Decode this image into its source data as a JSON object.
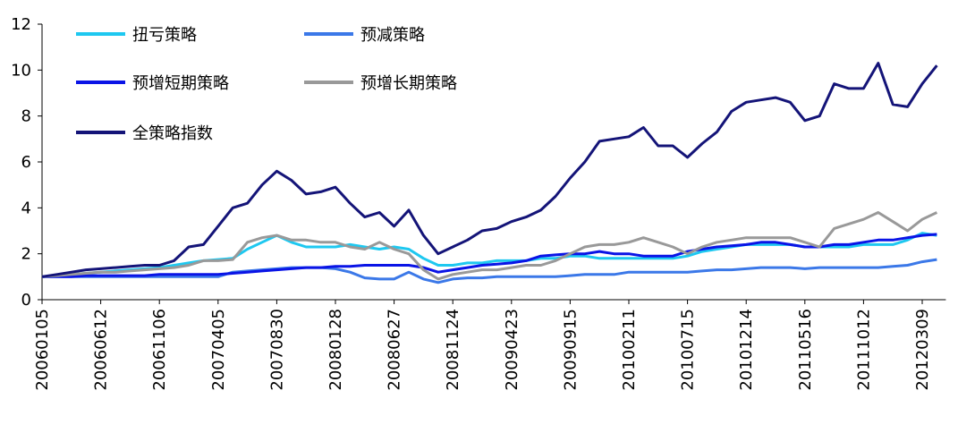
{
  "chart_data": {
    "type": "line",
    "categories": [
      "20060105",
      null,
      null,
      null,
      "20060612",
      null,
      null,
      null,
      "20061106",
      null,
      null,
      null,
      "20070405",
      null,
      null,
      null,
      "20070830",
      null,
      null,
      null,
      "20080128",
      null,
      null,
      null,
      "20080627",
      null,
      null,
      null,
      "20081124",
      null,
      null,
      null,
      "20090423",
      null,
      null,
      null,
      "20090915",
      null,
      null,
      null,
      "20100211",
      null,
      null,
      null,
      "20100715",
      null,
      null,
      null,
      "20101214",
      null,
      null,
      null,
      "20110516",
      null,
      null,
      null,
      "20111012",
      null,
      null,
      null,
      "20120309",
      null
    ],
    "series": [
      {
        "name": "扭亏策略",
        "color": "#1ec8f0",
        "values": [
          1.0,
          1.05,
          1.1,
          1.15,
          1.2,
          1.25,
          1.3,
          1.35,
          1.4,
          1.5,
          1.6,
          1.7,
          1.75,
          1.8,
          2.2,
          2.5,
          2.8,
          2.5,
          2.3,
          2.3,
          2.3,
          2.4,
          2.3,
          2.2,
          2.3,
          2.2,
          1.8,
          1.5,
          1.5,
          1.6,
          1.6,
          1.7,
          1.7,
          1.7,
          1.8,
          1.8,
          1.9,
          1.9,
          1.8,
          1.8,
          1.8,
          1.8,
          1.8,
          1.8,
          1.9,
          2.1,
          2.2,
          2.3,
          2.4,
          2.4,
          2.4,
          2.4,
          2.3,
          2.3,
          2.3,
          2.3,
          2.4,
          2.4,
          2.4,
          2.6,
          2.9,
          2.8
        ]
      },
      {
        "name": "预减策略",
        "color": "#3b78e8",
        "values": [
          1.0,
          1.0,
          1.0,
          1.0,
          1.0,
          1.0,
          1.0,
          1.0,
          1.0,
          1.0,
          1.0,
          1.0,
          1.0,
          1.2,
          1.25,
          1.3,
          1.35,
          1.4,
          1.4,
          1.4,
          1.35,
          1.2,
          0.95,
          0.9,
          0.9,
          1.2,
          0.9,
          0.75,
          0.9,
          0.95,
          0.95,
          1.0,
          1.0,
          1.0,
          1.0,
          1.0,
          1.05,
          1.1,
          1.1,
          1.1,
          1.2,
          1.2,
          1.2,
          1.2,
          1.2,
          1.25,
          1.3,
          1.3,
          1.35,
          1.4,
          1.4,
          1.4,
          1.35,
          1.4,
          1.4,
          1.4,
          1.4,
          1.4,
          1.45,
          1.5,
          1.65,
          1.75
        ]
      },
      {
        "name": "预增短期策略",
        "color": "#0a14e6",
        "values": [
          1.0,
          1.0,
          1.0,
          1.05,
          1.05,
          1.05,
          1.05,
          1.05,
          1.1,
          1.1,
          1.1,
          1.1,
          1.1,
          1.15,
          1.2,
          1.25,
          1.3,
          1.35,
          1.4,
          1.4,
          1.45,
          1.45,
          1.5,
          1.5,
          1.5,
          1.5,
          1.4,
          1.2,
          1.3,
          1.4,
          1.5,
          1.55,
          1.6,
          1.7,
          1.9,
          1.95,
          2.0,
          2.0,
          2.1,
          2.0,
          2.0,
          1.9,
          1.9,
          1.9,
          2.1,
          2.2,
          2.3,
          2.35,
          2.4,
          2.5,
          2.5,
          2.4,
          2.3,
          2.3,
          2.4,
          2.4,
          2.5,
          2.6,
          2.6,
          2.7,
          2.8,
          2.85
        ]
      },
      {
        "name": "预增长期策略",
        "color": "#999999",
        "values": [
          1.0,
          1.05,
          1.1,
          1.15,
          1.2,
          1.2,
          1.25,
          1.3,
          1.35,
          1.4,
          1.5,
          1.7,
          1.7,
          1.75,
          2.5,
          2.7,
          2.8,
          2.6,
          2.6,
          2.5,
          2.5,
          2.3,
          2.2,
          2.5,
          2.2,
          2.0,
          1.3,
          0.9,
          1.1,
          1.2,
          1.3,
          1.3,
          1.4,
          1.5,
          1.5,
          1.7,
          2.0,
          2.3,
          2.4,
          2.4,
          2.5,
          2.7,
          2.5,
          2.3,
          2.0,
          2.3,
          2.5,
          2.6,
          2.7,
          2.7,
          2.7,
          2.7,
          2.5,
          2.3,
          3.1,
          3.3,
          3.5,
          3.8,
          3.4,
          3.0,
          3.5,
          3.8
        ]
      },
      {
        "name": "全策略指数",
        "color": "#141478",
        "values": [
          1.0,
          1.1,
          1.2,
          1.3,
          1.35,
          1.4,
          1.45,
          1.5,
          1.5,
          1.7,
          2.3,
          2.4,
          3.2,
          4.0,
          4.2,
          5.0,
          5.6,
          5.2,
          4.6,
          4.7,
          4.9,
          4.2,
          3.6,
          3.8,
          3.2,
          3.9,
          2.8,
          2.0,
          2.3,
          2.6,
          3.0,
          3.1,
          3.4,
          3.6,
          3.9,
          4.5,
          5.3,
          6.0,
          6.9,
          7.0,
          7.1,
          7.5,
          6.7,
          6.7,
          6.2,
          6.8,
          7.3,
          8.2,
          8.6,
          8.7,
          8.8,
          8.6,
          7.8,
          8.0,
          9.4,
          9.2,
          9.2,
          10.3,
          8.5,
          8.4,
          9.4,
          10.2
        ]
      }
    ],
    "ylim": [
      0,
      12
    ],
    "yticks": [
      0,
      2,
      4,
      6,
      8,
      10,
      12
    ],
    "grid": false,
    "legend": "top-left"
  }
}
